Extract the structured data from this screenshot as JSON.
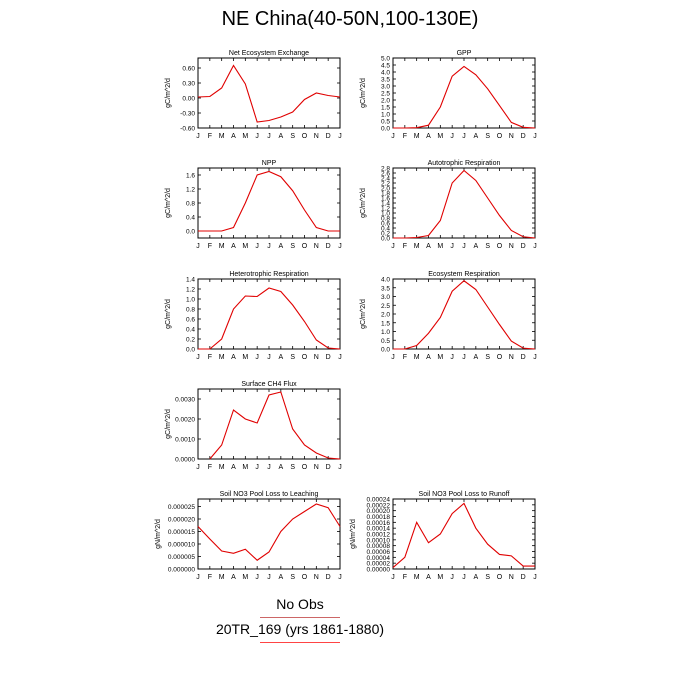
{
  "title": "NE China(40-50N,100-130E)",
  "legend": {
    "obs_label": "No Obs",
    "model_label": "20TR_169 (yrs 1861-1880)"
  },
  "colors": {
    "model_line": "#e00000",
    "axis": "#000000"
  },
  "months": [
    "J",
    "F",
    "M",
    "A",
    "M",
    "J",
    "J",
    "A",
    "S",
    "O",
    "N",
    "D",
    "J"
  ],
  "chart_data": [
    {
      "type": "line",
      "title": "Net Ecosystem Exchange",
      "ylabel": "gC/m^2/d",
      "ylim": [
        -0.6,
        0.8
      ],
      "yticks": [
        -0.6,
        -0.3,
        0.0,
        0.3,
        0.6
      ],
      "ytick_labels": [
        "-0.60",
        "-0.30",
        "0.00",
        "0.30",
        "0.60"
      ],
      "values": [
        0.02,
        0.03,
        0.2,
        0.65,
        0.28,
        -0.48,
        -0.45,
        -0.38,
        -0.28,
        -0.03,
        0.1,
        0.05,
        0.02
      ]
    },
    {
      "type": "line",
      "title": "GPP",
      "ylabel": "gC/m^2/d",
      "ylim": [
        0.0,
        5.0
      ],
      "yticks": [
        0.0,
        0.5,
        1.0,
        1.5,
        2.0,
        2.5,
        3.0,
        3.5,
        4.0,
        4.5,
        5.0
      ],
      "ytick_labels": [
        "0.0",
        "0.5",
        "1.0",
        "1.5",
        "2.0",
        "2.5",
        "3.0",
        "3.5",
        "4.0",
        "4.5",
        "5.0"
      ],
      "values": [
        0.0,
        0.0,
        0.02,
        0.2,
        1.5,
        3.7,
        4.4,
        3.8,
        2.8,
        1.6,
        0.4,
        0.05,
        0.0
      ]
    },
    {
      "type": "line",
      "title": "NPP",
      "ylabel": "gC/m^2/d",
      "ylim": [
        -0.2,
        1.8
      ],
      "yticks": [
        0.0,
        0.4,
        0.8,
        1.2,
        1.6
      ],
      "ytick_labels": [
        "0.0",
        "0.4",
        "0.8",
        "1.2",
        "1.6"
      ],
      "values": [
        0.0,
        0.0,
        0.0,
        0.1,
        0.8,
        1.6,
        1.7,
        1.55,
        1.15,
        0.6,
        0.1,
        0.0,
        0.0
      ]
    },
    {
      "type": "line",
      "title": "Autotrophic Respiration",
      "ylabel": "gC/m^2/d",
      "ylim": [
        0.0,
        2.8
      ],
      "yticks": [
        0.0,
        0.2,
        0.4,
        0.6,
        0.8,
        1.0,
        1.2,
        1.4,
        1.6,
        1.8,
        2.0,
        2.2,
        2.4,
        2.6,
        2.8
      ],
      "ytick_labels": [
        "0.0",
        "0.2",
        "0.4",
        "0.6",
        "0.8",
        "1.0",
        "1.2",
        "1.4",
        "1.6",
        "1.8",
        "2.0",
        "2.2",
        "2.4",
        "2.6",
        "2.8"
      ],
      "values": [
        0.0,
        0.0,
        0.02,
        0.1,
        0.7,
        2.2,
        2.7,
        2.3,
        1.6,
        0.9,
        0.3,
        0.05,
        0.0
      ]
    },
    {
      "type": "line",
      "title": "Heterotrophic Respiration",
      "ylabel": "gC/m^2/d",
      "ylim": [
        0.0,
        1.4
      ],
      "yticks": [
        0.0,
        0.2,
        0.4,
        0.6,
        0.8,
        1.0,
        1.2,
        1.4
      ],
      "ytick_labels": [
        "0.0",
        "0.2",
        "0.4",
        "0.6",
        "0.8",
        "1.0",
        "1.2",
        "1.4"
      ],
      "values": [
        0.0,
        0.0,
        0.2,
        0.8,
        1.06,
        1.05,
        1.22,
        1.15,
        0.88,
        0.55,
        0.18,
        0.02,
        0.0
      ]
    },
    {
      "type": "line",
      "title": "Ecosystem Respiration",
      "ylabel": "gC/m^2/d",
      "ylim": [
        0.0,
        4.0
      ],
      "yticks": [
        0.0,
        0.5,
        1.0,
        1.5,
        2.0,
        2.5,
        3.0,
        3.5,
        4.0
      ],
      "ytick_labels": [
        "0.0",
        "0.5",
        "1.0",
        "1.5",
        "2.0",
        "2.5",
        "3.0",
        "3.5",
        "4.0"
      ],
      "values": [
        0.0,
        0.0,
        0.2,
        0.9,
        1.8,
        3.3,
        3.9,
        3.4,
        2.4,
        1.4,
        0.45,
        0.05,
        0.0
      ]
    },
    {
      "type": "line",
      "title": "Surface CH4 Flux",
      "ylabel": "gC/m^2/d",
      "ylim": [
        0.0,
        0.0035
      ],
      "yticks": [
        0.0,
        0.001,
        0.002,
        0.003
      ],
      "ytick_labels": [
        "0.0000",
        "0.0010",
        "0.0020",
        "0.0030"
      ],
      "values": [
        null,
        0.0,
        0.0007,
        0.00245,
        0.002,
        0.0018,
        0.0032,
        0.00335,
        0.0015,
        0.0007,
        0.0003,
        5e-05,
        0.0
      ]
    },
    {
      "type": "line",
      "title": "Soil NO3 Pool Loss to Leaching",
      "ylabel": "gN/m^2/d",
      "ylim": [
        0.0,
        2.8e-05
      ],
      "yticks": [
        0.0,
        5e-06,
        1e-05,
        1.5e-05,
        2e-05,
        2.5e-05
      ],
      "ytick_labels": [
        "0.000000",
        "0.000005",
        "0.000010",
        "0.000015",
        "0.000020",
        "0.000025"
      ],
      "values": [
        1.7e-05,
        1.2e-05,
        7.2e-06,
        6.3e-06,
        7.9e-06,
        3.5e-06,
        6.8e-06,
        1.5e-05,
        2e-05,
        2.3e-05,
        2.6e-05,
        2.45e-05,
        1.7e-05
      ]
    },
    {
      "type": "line",
      "title": "Soil NO3 Pool Loss to Runoff",
      "ylabel": "gN/m^2/d",
      "ylim": [
        0.0,
        0.00024
      ],
      "yticks": [
        0.0,
        2e-05,
        4e-05,
        6e-05,
        8e-05,
        0.0001,
        0.00012,
        0.00014,
        0.00016,
        0.00018,
        0.0002,
        0.00022,
        0.00024
      ],
      "ytick_labels": [
        "0.00000",
        "0.00002",
        "0.00004",
        "0.00006",
        "0.00008",
        "0.00010",
        "0.00012",
        "0.00014",
        "0.00016",
        "0.00018",
        "0.00020",
        "0.00022",
        "0.00024"
      ],
      "values": [
        5e-06,
        4e-05,
        0.00016,
        9e-05,
        0.00012,
        0.00019,
        0.000225,
        0.00014,
        8.5e-05,
        5e-05,
        4.5e-05,
        1e-05,
        1e-05
      ]
    }
  ]
}
